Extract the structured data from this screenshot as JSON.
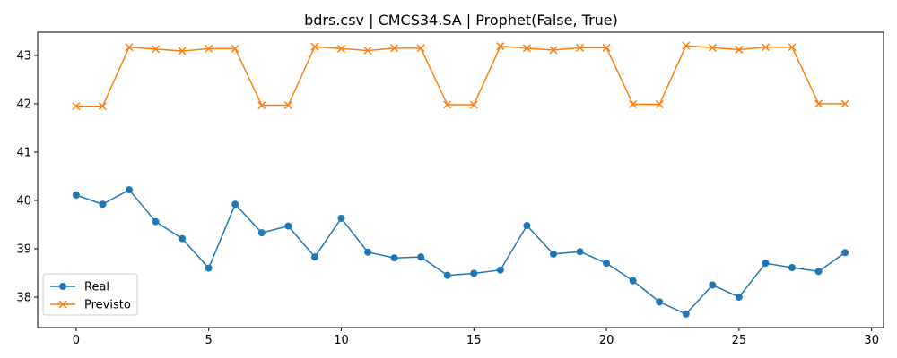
{
  "chart_data": {
    "type": "line",
    "title": "bdrs.csv | CMCS34.SA | Prophet(False, True)",
    "xlabel": "",
    "ylabel": "",
    "xlim": [
      -1.45,
      30.45
    ],
    "ylim": [
      37.37,
      43.48
    ],
    "xticks": [
      0,
      5,
      10,
      15,
      20,
      25,
      30
    ],
    "yticks": [
      38,
      39,
      40,
      41,
      42,
      43
    ],
    "grid": false,
    "legend_position": "lower-left",
    "x": [
      0,
      1,
      2,
      3,
      4,
      5,
      6,
      7,
      8,
      9,
      10,
      11,
      12,
      13,
      14,
      15,
      16,
      17,
      18,
      19,
      20,
      21,
      22,
      23,
      24,
      25,
      26,
      27,
      28,
      29
    ],
    "series": [
      {
        "name": "Real",
        "color": "#1f77b4",
        "marker": "circle",
        "values": [
          40.11,
          39.92,
          40.22,
          39.56,
          39.21,
          38.6,
          39.92,
          39.33,
          39.47,
          38.83,
          39.63,
          38.93,
          38.81,
          38.83,
          38.45,
          38.49,
          38.56,
          39.48,
          38.89,
          38.94,
          38.7,
          38.34,
          37.9,
          37.65,
          38.25,
          38.0,
          38.7,
          38.61,
          38.53,
          38.92
        ]
      },
      {
        "name": "Previsto",
        "color": "#ff7f0e",
        "marker": "x",
        "values": [
          41.95,
          41.95,
          43.17,
          43.13,
          43.09,
          43.14,
          43.14,
          41.97,
          41.97,
          43.18,
          43.14,
          43.1,
          43.15,
          43.15,
          41.98,
          41.98,
          43.19,
          43.15,
          43.11,
          43.16,
          43.16,
          41.99,
          41.99,
          43.2,
          43.16,
          43.12,
          43.17,
          43.17,
          42.0,
          42.0
        ]
      }
    ]
  }
}
